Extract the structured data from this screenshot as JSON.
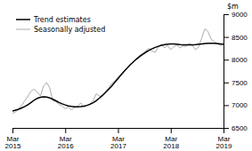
{
  "chart_data": {
    "type": "line",
    "title": "",
    "ylabel": "$m",
    "categories": [
      "Mar\n2015",
      null,
      null,
      null,
      null,
      null,
      null,
      null,
      null,
      null,
      null,
      null,
      null,
      null,
      null,
      null,
      null,
      "Mar\n2016",
      null,
      null,
      null,
      null,
      null,
      null,
      null,
      null,
      null,
      null,
      null,
      null,
      null,
      null,
      null,
      null,
      "Mar\n2017",
      null,
      null,
      null,
      null,
      null,
      null,
      null,
      null,
      null,
      null,
      null,
      null,
      null,
      null,
      null,
      null,
      "Mar\n2018",
      null,
      null,
      null,
      null,
      null,
      null,
      null,
      null,
      null,
      null,
      null,
      null,
      null,
      null,
      null,
      null,
      "Mar\n2019"
    ],
    "series": [
      {
        "name": "Trend estimates",
        "color": "#000000",
        "values": [
          6870,
          6890,
          6910,
          6940,
          6970,
          7010,
          7060,
          7110,
          7150,
          7175,
          7185,
          7180,
          7160,
          7130,
          7095,
          7060,
          7030,
          7005,
          6985,
          6972,
          6965,
          6963,
          6968,
          6978,
          6995,
          7020,
          7055,
          7100,
          7155,
          7215,
          7280,
          7350,
          7425,
          7505,
          7585,
          7665,
          7745,
          7820,
          7890,
          7955,
          8015,
          8070,
          8120,
          8165,
          8205,
          8240,
          8270,
          8295,
          8315,
          8330,
          8340,
          8345,
          8345,
          8340,
          8333,
          8328,
          8325,
          8325,
          8328,
          8333,
          8340,
          8348,
          8355,
          8360,
          8362,
          8360,
          8355,
          8348,
          8340
        ]
      },
      {
        "name": "Seasonally adjusted",
        "color": "#aaaaaa",
        "values": [
          6820,
          6850,
          6920,
          7000,
          7100,
          7200,
          7310,
          7350,
          7290,
          7200,
          7420,
          7500,
          7380,
          7100,
          7080,
          7020,
          6980,
          6920,
          6960,
          6900,
          6950,
          6970,
          7050,
          6960,
          6990,
          7030,
          7100,
          7250,
          7200,
          7200,
          7300,
          7380,
          7480,
          7530,
          7620,
          7680,
          7750,
          7820,
          7900,
          7950,
          8020,
          8100,
          8140,
          8200,
          8250,
          8190,
          8160,
          8280,
          8340,
          8260,
          8310,
          8220,
          8290,
          8320,
          8260,
          8300,
          8290,
          8360,
          8310,
          8220,
          8280,
          8480,
          8680,
          8620,
          8450,
          8400,
          8350,
          8310,
          8340
        ]
      }
    ],
    "ylim": [
      6500,
      9000
    ],
    "yticks": [
      6500,
      7000,
      7500,
      8000,
      8500,
      9000
    ],
    "grid": false,
    "legend": "upper left"
  }
}
